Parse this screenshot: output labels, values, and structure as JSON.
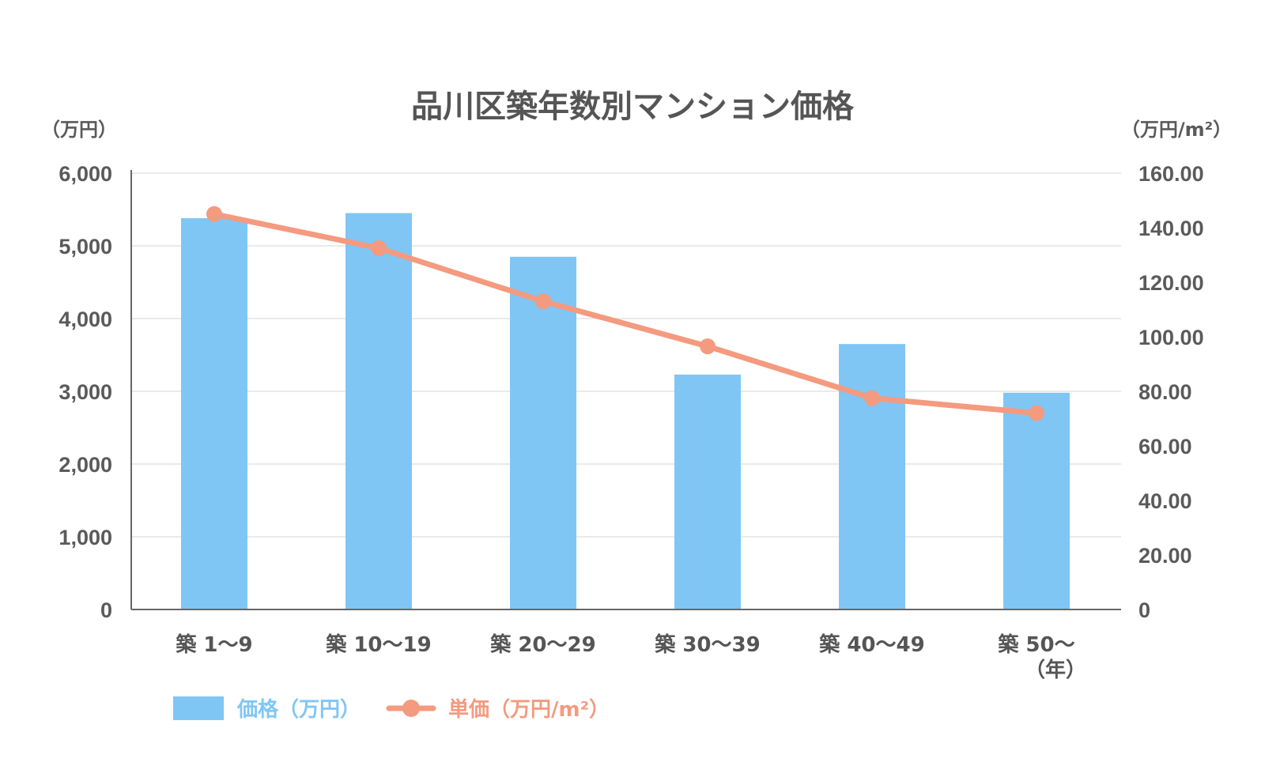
{
  "chart_data": {
    "type": "bar+line",
    "title": "品川区築年数別マンション価格",
    "categories": [
      "築 1〜9",
      "築 10〜19",
      "築 20〜29",
      "築 30〜39",
      "築 40〜49",
      "築 50〜"
    ],
    "xlabel": "（年）",
    "ylabel_left": "（万円）",
    "ylabel_right": "（万円/m²）",
    "ylim_left": [
      0,
      6000
    ],
    "ylim_right": [
      0,
      160
    ],
    "yticks_left": [
      "0",
      "1,000",
      "2,000",
      "3,000",
      "4,000",
      "5,000",
      "6,000"
    ],
    "yticks_right": [
      "0",
      "20.00",
      "40.00",
      "60.00",
      "80.00",
      "100.00",
      "120.00",
      "140.00",
      "160.00"
    ],
    "grid": true,
    "legend_position": "bottom-left",
    "series": [
      {
        "name": "価格（万円）",
        "type": "bar",
        "axis": "left",
        "color": "#7fc6f5",
        "values": [
          5380,
          5450,
          4850,
          3230,
          3650,
          2980
        ]
      },
      {
        "name": "単価（万円/m²）",
        "type": "line",
        "axis": "right",
        "color": "#f49a7f",
        "values": [
          145.0,
          132.5,
          113.0,
          96.5,
          77.5,
          72.0
        ]
      }
    ]
  }
}
